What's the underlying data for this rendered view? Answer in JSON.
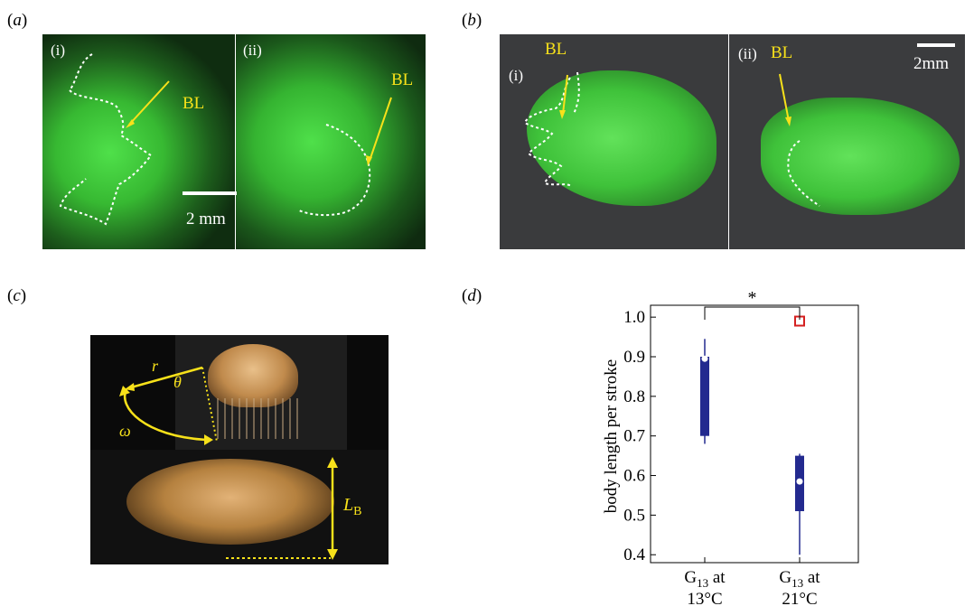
{
  "panels": {
    "a": {
      "label": "a",
      "sub_i": "(i)",
      "sub_ii": "(ii)",
      "annot_i": "BL",
      "annot_ii": "BL",
      "scale": "2 mm"
    },
    "b": {
      "label": "b",
      "sub_i": "(i)",
      "sub_ii": "(ii)",
      "annot_i": "BL",
      "annot_ii": "BL",
      "scale": "2mm"
    },
    "c": {
      "label": "c",
      "r": "r",
      "theta": "θ",
      "omega": "ω",
      "lb_main": "L",
      "lb_sub": "B"
    },
    "d": {
      "label": "d"
    }
  },
  "colors": {
    "fluor_green": "#3bd43b",
    "annotation_yellow": "#f7e11a",
    "box_blue": "#232a8f",
    "outlier_red": "#d42020"
  },
  "chart_data": {
    "type": "box",
    "title": "",
    "xlabel": "",
    "ylabel": "body length per stroke",
    "ylim": [
      0.38,
      1.03
    ],
    "yticks": [
      "0.4",
      "0.5",
      "0.6",
      "0.7",
      "0.8",
      "0.9",
      "1.0"
    ],
    "categories": [
      {
        "main": "G",
        "sub": "13",
        "rest": " at",
        "line2": "13°C"
      },
      {
        "main": "G",
        "sub": "13",
        "rest": " at",
        "line2": "21°C"
      }
    ],
    "boxes": [
      {
        "whisker_low": 0.68,
        "q1": 0.7,
        "median": 0.895,
        "q3": 0.9,
        "whisker_high": 0.945,
        "outliers": []
      },
      {
        "whisker_low": 0.4,
        "q1": 0.51,
        "median": 0.585,
        "q3": 0.65,
        "whisker_high": 0.655,
        "outliers": [
          0.99
        ]
      }
    ],
    "significance": "*"
  }
}
